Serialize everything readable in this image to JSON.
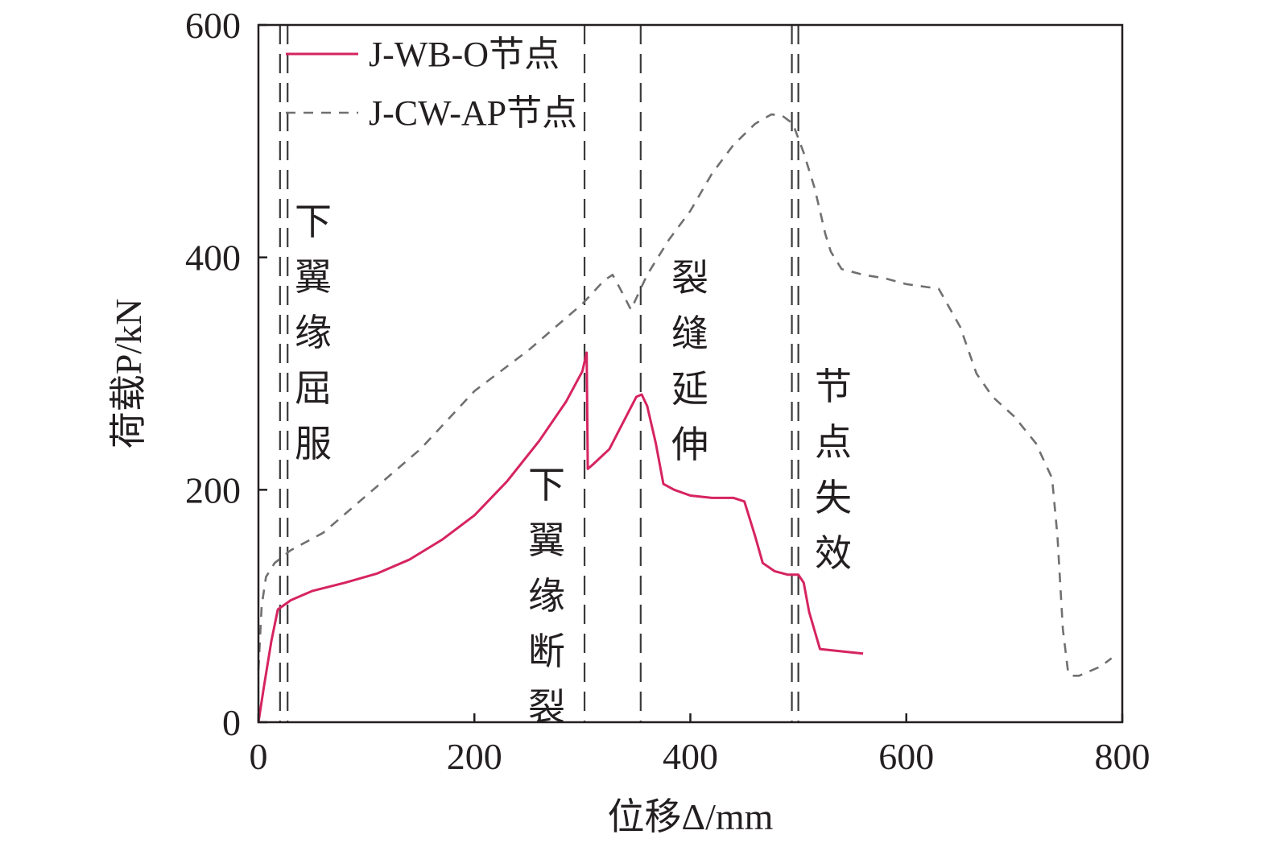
{
  "chart_data": {
    "type": "line",
    "xlabel": "位移Δ/mm",
    "ylabel": "荷载P/kN",
    "xlim": [
      0,
      800
    ],
    "ylim": [
      0,
      600
    ],
    "xticks": [
      0,
      200,
      400,
      600,
      800
    ],
    "yticks": [
      0,
      200,
      400,
      600
    ],
    "grid": false,
    "legend_position": "top-left",
    "series": [
      {
        "name": "J-WB-O节点",
        "color": "#d6245f",
        "style": "solid",
        "x": [
          0,
          5,
          12,
          18,
          30,
          50,
          80,
          110,
          140,
          170,
          200,
          230,
          260,
          285,
          300,
          304,
          305,
          310,
          325,
          340,
          350,
          355,
          360,
          368,
          375,
          385,
          400,
          420,
          440,
          450,
          455,
          460,
          467,
          478,
          490,
          500,
          505,
          510,
          520,
          540,
          560
        ],
        "y": [
          0,
          30,
          70,
          97,
          105,
          113,
          120,
          128,
          140,
          157,
          178,
          207,
          242,
          276,
          302,
          318,
          218,
          222,
          235,
          262,
          280,
          282,
          272,
          240,
          205,
          200,
          195,
          193,
          193,
          190,
          175,
          160,
          137,
          130,
          127,
          127,
          120,
          95,
          63,
          61,
          59
        ]
      },
      {
        "name": "J-CW-AP节点",
        "color": "#707070",
        "style": "dashed",
        "x": [
          0,
          3,
          7,
          15,
          30,
          60,
          100,
          150,
          200,
          250,
          300,
          320,
          328,
          335,
          345,
          360,
          380,
          400,
          420,
          440,
          460,
          475,
          485,
          495,
          505,
          515,
          520,
          525,
          530,
          540,
          560,
          580,
          600,
          630,
          650,
          665,
          680,
          700,
          720,
          735,
          740,
          745,
          750,
          755,
          760,
          780,
          790
        ],
        "y": [
          45,
          100,
          125,
          137,
          148,
          163,
          195,
          235,
          285,
          320,
          360,
          380,
          385,
          373,
          355,
          385,
          415,
          440,
          472,
          497,
          515,
          523,
          522,
          515,
          490,
          460,
          440,
          420,
          405,
          390,
          385,
          382,
          377,
          373,
          340,
          300,
          280,
          263,
          240,
          210,
          160,
          80,
          42,
          40,
          40,
          48,
          55
        ]
      }
    ],
    "stage_lines_x": [
      20,
      27,
      302,
      354,
      494,
      500
    ],
    "annotations": [
      "下翼缘屈服",
      "下翼缘断裂",
      "裂缝延伸",
      "节点失效"
    ]
  }
}
